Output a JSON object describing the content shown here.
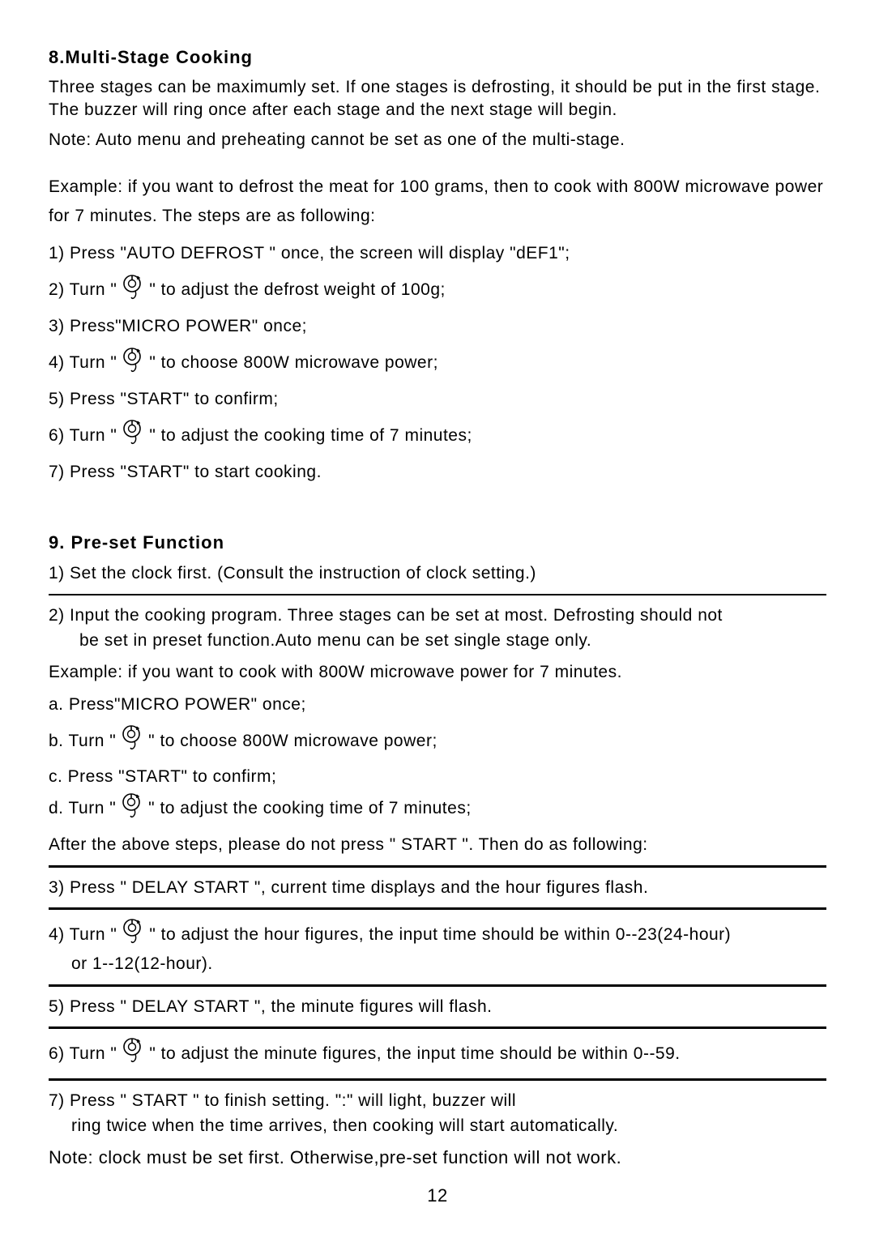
{
  "page_number": "12",
  "section8": {
    "heading": "8.Multi-Stage Cooking",
    "intro1": "Three stages can be maximumly set. If one stages is defrosting, it should be put in the first stage. The buzzer will ring once after each stage and the next stage will begin.",
    "intro2": "Note: Auto menu and preheating cannot be set as one of the multi-stage.",
    "example": "Example: if you want to defrost the meat for 100 grams, then to cook with 800W microwave power for 7 minutes. The steps are as following:",
    "s1": "1) Press \"AUTO DEFROST \" once, the screen will display \"dEF1\";",
    "s2a": "2) Turn \" ",
    "s2b": " \" to adjust the defrost weight of 100g;",
    "s3": "3) Press\"MICRO POWER\" once;",
    "s4a": "4) Turn \" ",
    "s4b": " \" to choose 800W microwave power;",
    "s5": "5) Press \"START\" to confirm;",
    "s6a": "6) Turn \"  ",
    "s6b": "  \" to adjust the cooking time of 7 minutes;",
    "s7": "7) Press \"START\" to start cooking."
  },
  "section9": {
    "heading": "9. Pre-set Function",
    "s1": "1)  Set the clock first. (Consult the instruction of clock setting.)",
    "s2": "2)  Input the cooking program. Three stages can be set at most. Defrosting should not",
    "s2b": "be set in preset function.Auto menu can be set single stage only.",
    "example": "Example: if you want to cook with 800W microwave power for 7 minutes.",
    "sa": "a. Press\"MICRO POWER\" once;",
    "sb_a": "b. Turn \" ",
    "sb_b": "  \" to choose 800W microwave power;",
    "sc": "c. Press \"START\" to confirm;",
    "sd_a": "d. Turn \"  ",
    "sd_b": "   \" to adjust the cooking time of 7 minutes;",
    "after": "After the above steps, please do not press \" START \". Then do as following:",
    "s3": "3) Press \" DELAY START \", current time displays and the hour figures flash.",
    "s4a": "4) Turn \"",
    "s4b": " \" to adjust the hour figures, the input time should be within  0--23(24-hour)",
    "s4c": "or 1--12(12-hour).",
    "s5": "5) Press \" DELAY START \", the minute figures will flash.",
    "s6a": "6) Turn \" ",
    "s6b": " \" to adjust the minute figures, the input time should be within 0--59.",
    "s7a": "7) Press \" START \" to finish setting. \":\" will light, buzzer will",
    "s7b": "ring twice when the time arrives, then cooking will start automatically.",
    "note": "Note: clock must be set first. Otherwise,pre-set function will not work."
  },
  "icon": {
    "stroke": "#000000",
    "size": 28
  }
}
